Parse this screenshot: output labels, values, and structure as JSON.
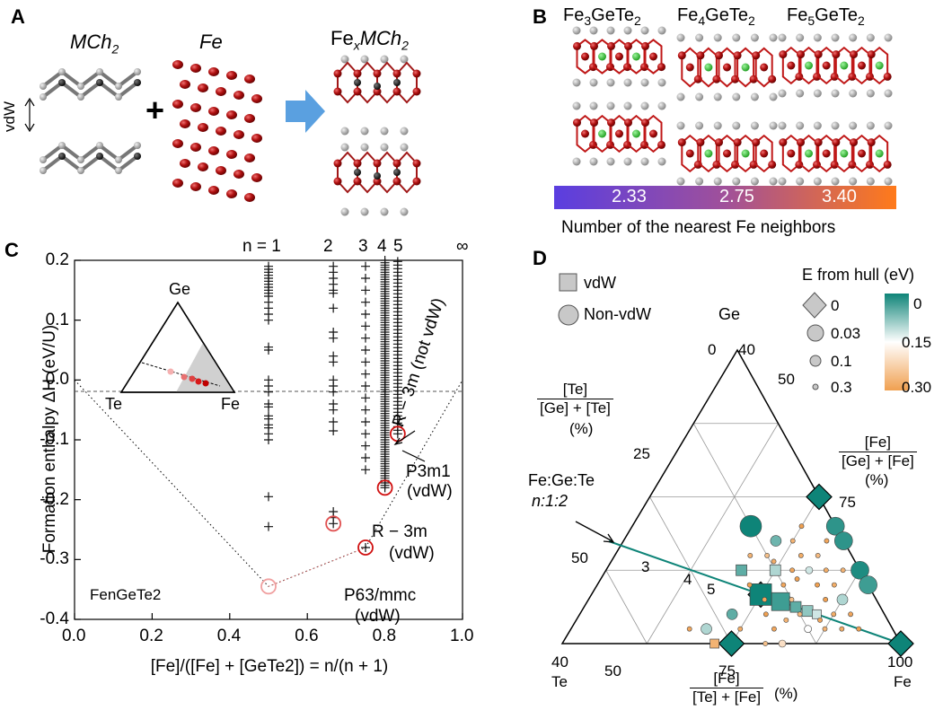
{
  "panel_a": {
    "label": "A",
    "mch2": "MCh",
    "mch2_sub": "2",
    "fe": "Fe",
    "product_fe": "Fe",
    "product_x": "x",
    "product_mch": "MCh",
    "product_sub": "2",
    "plus": "+",
    "vdw": "vdW"
  },
  "panel_b": {
    "label": "B",
    "structures": [
      {
        "main": "Fe",
        "sub1": "3",
        "mid": "GeTe",
        "sub2": "2"
      },
      {
        "main": "Fe",
        "sub1": "4",
        "mid": "GeTe",
        "sub2": "2"
      },
      {
        "main": "Fe",
        "sub1": "5",
        "mid": "GeTe",
        "sub2": "2"
      }
    ],
    "colorbar_ticks": [
      "2.33",
      "2.75",
      "3.40"
    ],
    "colorbar_label": "Number of the nearest Fe neighbors",
    "colorbar_colors": [
      "#5a3ee0",
      "#a0509a",
      "#ff7a1a"
    ]
  },
  "chart_data": [
    {
      "panel": "C",
      "type": "scatter",
      "xlabel": "[Fe]/([Fe] + [GeTe2]) = n/(n + 1)",
      "ylabel": "Formation enthalpy ΔH (eV/U)",
      "xlim": [
        0.0,
        1.0
      ],
      "ylim": [
        -0.4,
        0.2
      ],
      "x_ticks": [
        "0.0",
        "0.2",
        "0.4",
        "0.6",
        "0.8",
        "1.0"
      ],
      "y_ticks": [
        "0.2",
        "0.1",
        "0.0",
        "-0.1",
        "-0.2",
        "-0.3",
        "-0.4"
      ],
      "top_labels": [
        {
          "text": "n = 1",
          "x": 0.5
        },
        {
          "text": "2",
          "x": 0.667
        },
        {
          "text": "3",
          "x": 0.75
        },
        {
          "text": "4",
          "x": 0.8
        },
        {
          "text": "5",
          "x": 0.833
        },
        {
          "text": "∞",
          "x": 1.0
        }
      ],
      "convex_hull": [
        {
          "x": 0.0,
          "y": 0.0
        },
        {
          "x": 0.5,
          "y": -0.345
        },
        {
          "x": 0.75,
          "y": -0.28
        },
        {
          "x": 1.0,
          "y": 0.0
        }
      ],
      "hull_to_hull_points": [
        {
          "x": 0.5,
          "y": -0.345
        },
        {
          "x": 0.667,
          "y": -0.24
        },
        {
          "x": 0.75,
          "y": -0.28
        },
        {
          "x": 0.8,
          "y": -0.18
        },
        {
          "x": 0.833,
          "y": -0.09
        }
      ],
      "highlighted": [
        {
          "x": 0.5,
          "y": -0.345,
          "color": "#f0a0a0"
        },
        {
          "x": 0.667,
          "y": -0.24,
          "color": "#e05050"
        },
        {
          "x": 0.75,
          "y": -0.28,
          "color": "#d01010"
        },
        {
          "x": 0.8,
          "y": -0.18,
          "color": "#d01010"
        },
        {
          "x": 0.833,
          "y": -0.09,
          "color": "#d01010"
        }
      ],
      "columns": [
        {
          "x": 0.5,
          "y": [
            0.19,
            0.185,
            0.18,
            0.175,
            0.17,
            0.165,
            0.16,
            0.155,
            0.15,
            0.145,
            0.14,
            0.13,
            0.12,
            0.11,
            0.1,
            0.055,
            0.05,
            0.0,
            -0.01,
            -0.02,
            -0.04,
            -0.045,
            -0.06,
            -0.065,
            -0.075,
            -0.08,
            -0.09,
            -0.1,
            -0.195,
            -0.245
          ]
        },
        {
          "x": 0.667,
          "y": [
            0.19,
            0.18,
            0.17,
            0.16,
            0.15,
            0.145,
            0.12,
            0.08,
            0.07,
            0.04,
            0.03,
            0.0,
            -0.01,
            -0.02,
            -0.04,
            -0.05,
            -0.07,
            -0.085,
            -0.22,
            -0.23,
            -0.24
          ]
        },
        {
          "x": 0.75,
          "y": [
            0.19,
            0.17,
            0.15,
            0.13,
            0.11,
            0.09,
            0.07,
            0.05,
            0.03,
            0.01,
            -0.01,
            -0.03,
            -0.05,
            -0.07,
            -0.09,
            -0.11,
            -0.13,
            -0.15,
            -0.28
          ]
        },
        {
          "x": 0.8,
          "y_range": [
            -0.18,
            0.2
          ],
          "step": 0.004
        },
        {
          "x": 0.833,
          "y_range": [
            -0.09,
            0.2
          ],
          "step": 0.006
        }
      ],
      "annotations": [
        {
          "text": "R − 3m (not vdW)",
          "rotated": true
        },
        {
          "text": "P3m1",
          "sub": "(vdW)"
        },
        {
          "text": "R − 3m",
          "sub": "(vdW)"
        },
        {
          "text": "P63/mmc",
          "sub": "(vdW)"
        }
      ],
      "series_label": "FenGeTe2",
      "inset": {
        "top": "Ge",
        "left": "Te",
        "right": "Fe"
      }
    },
    {
      "panel": "D",
      "type": "scatter",
      "subtype": "ternary",
      "vertices": {
        "top": "Ge",
        "left": "Te",
        "right": "Fe"
      },
      "axis_ticks": {
        "te_ge_edge": [
          "0",
          "25",
          "50"
        ],
        "ge_fe_edge": [
          "40",
          "50",
          "75"
        ],
        "bottom": [
          "40",
          "50",
          "75",
          "100"
        ]
      },
      "legend_shapes": [
        "vdW",
        "Non-vdW"
      ],
      "legend_title": "E from hull (eV)",
      "legend_sizes": [
        "0",
        "0.03",
        "0.1",
        "0.3"
      ],
      "colorbar_ticks": [
        "0",
        "0.15",
        "0.30"
      ],
      "colorbar_colors": [
        "#0e8478",
        "#ffffff",
        "#f0a050"
      ],
      "line_label": "Fe:Ge:Te",
      "line_label2": "n:1:2",
      "n_labels": [
        "3",
        "4",
        "5"
      ],
      "left_axis": {
        "num": "[Te]",
        "den": "[Ge] + [Te]",
        "unit": "(%)"
      },
      "right_axis": {
        "num": "[Fe]",
        "den": "[Ge] + [Fe]",
        "unit": "(%)"
      },
      "bottom_axis": {
        "num": "[Fe]",
        "den": "[Te] + [Fe]",
        "unit": "(%)"
      },
      "points": [
        {
          "fe": 0.5,
          "ge": 0.0,
          "te": 0.5,
          "shape": "diamond",
          "e": 0.0
        },
        {
          "fe": 1.0,
          "ge": 0.0,
          "te": 0.0,
          "shape": "diamond",
          "e": 0.0
        },
        {
          "fe": 0.5,
          "ge": 0.5,
          "te": 0.0,
          "shape": "diamond",
          "e": 0.0
        },
        {
          "fe": 0.5,
          "ge": 0.167,
          "te": 0.333,
          "shape": "diamond",
          "e": 0.0
        },
        {
          "fe": 0.5,
          "ge": 0.167,
          "te": 0.333,
          "shape": "square",
          "e": 0.0
        },
        {
          "fe": 0.6,
          "ge": 0.4,
          "te": 0.0,
          "shape": "circle",
          "e": 0.02
        },
        {
          "fe": 0.65,
          "ge": 0.35,
          "te": 0.0,
          "shape": "circle",
          "e": 0.02
        },
        {
          "fe": 0.75,
          "ge": 0.25,
          "te": 0.0,
          "shape": "circle",
          "e": 0.01
        },
        {
          "fe": 0.8,
          "ge": 0.2,
          "te": 0.0,
          "shape": "circle",
          "e": 0.03
        },
        {
          "fe": 0.35,
          "ge": 0.4,
          "te": 0.25,
          "shape": "circle",
          "e": 0.0
        },
        {
          "fe": 0.45,
          "ge": 0.35,
          "te": 0.2,
          "shape": "circle",
          "e": 0.06
        },
        {
          "fe": 0.6,
          "ge": 0.25,
          "te": 0.15,
          "shape": "circle",
          "e": 0.12
        },
        {
          "fe": 0.4,
          "ge": 0.25,
          "te": 0.35,
          "shape": "square",
          "e": 0.05
        },
        {
          "fe": 0.571,
          "ge": 0.143,
          "te": 0.286,
          "shape": "square",
          "e": 0.03
        },
        {
          "fe": 0.625,
          "ge": 0.125,
          "te": 0.25,
          "shape": "square",
          "e": 0.05
        },
        {
          "fe": 0.667,
          "ge": 0.111,
          "te": 0.222,
          "shape": "square",
          "e": 0.08
        },
        {
          "fe": 0.7,
          "ge": 0.1,
          "te": 0.2,
          "shape": "square",
          "e": 0.12
        },
        {
          "fe": 0.5,
          "ge": 0.25,
          "te": 0.25,
          "shape": "square",
          "e": 0.1
        },
        {
          "fe": 0.45,
          "ge": 0.1,
          "te": 0.45,
          "shape": "circle",
          "e": 0.05
        },
        {
          "fe": 0.4,
          "ge": 0.05,
          "te": 0.55,
          "shape": "circle",
          "e": 0.1
        },
        {
          "fe": 0.7,
          "ge": 0.05,
          "te": 0.25,
          "shape": "circle",
          "e": 0.15
        },
        {
          "fe": 0.75,
          "ge": 0.15,
          "te": 0.1,
          "shape": "circle",
          "e": 0.1
        },
        {
          "fe": 0.65,
          "ge": 0.0,
          "te": 0.35,
          "shape": "circle",
          "e": 0.2
        },
        {
          "fe": 0.45,
          "ge": 0.3,
          "te": 0.25,
          "shape": "circle",
          "e": 0.25
        },
        {
          "fe": 0.55,
          "ge": 0.3,
          "te": 0.15,
          "shape": "circle",
          "e": 0.28
        },
        {
          "fe": 0.5,
          "ge": 0.35,
          "te": 0.15,
          "shape": "circle",
          "e": 0.27
        },
        {
          "fe": 0.6,
          "ge": 0.3,
          "te": 0.1,
          "shape": "circle",
          "e": 0.26
        },
        {
          "fe": 0.55,
          "ge": 0.2,
          "te": 0.25,
          "shape": "circle",
          "e": 0.29
        },
        {
          "fe": 0.65,
          "ge": 0.2,
          "te": 0.15,
          "shape": "circle",
          "e": 0.3
        },
        {
          "fe": 0.7,
          "ge": 0.2,
          "te": 0.1,
          "shape": "circle",
          "e": 0.28
        },
        {
          "fe": 0.6,
          "ge": 0.15,
          "te": 0.25,
          "shape": "circle",
          "e": 0.25
        },
        {
          "fe": 0.75,
          "ge": 0.05,
          "te": 0.2,
          "shape": "circle",
          "e": 0.27
        },
        {
          "fe": 0.8,
          "ge": 0.1,
          "te": 0.1,
          "shape": "circle",
          "e": 0.29
        },
        {
          "fe": 0.55,
          "ge": 0.1,
          "te": 0.35,
          "shape": "circle",
          "e": 0.3
        },
        {
          "fe": 0.5,
          "ge": 0.05,
          "te": 0.45,
          "shape": "circle",
          "e": 0.28
        },
        {
          "fe": 0.6,
          "ge": 0.05,
          "te": 0.35,
          "shape": "circle",
          "e": 0.29
        },
        {
          "fe": 0.45,
          "ge": 0.2,
          "te": 0.35,
          "shape": "circle",
          "e": 0.3
        },
        {
          "fe": 0.4,
          "ge": 0.3,
          "te": 0.3,
          "shape": "circle",
          "e": 0.27
        },
        {
          "fe": 0.65,
          "ge": 0.1,
          "te": 0.25,
          "shape": "circle",
          "e": 0.26
        },
        {
          "fe": 0.55,
          "ge": 0.25,
          "te": 0.2,
          "shape": "circle",
          "e": 0.29
        },
        {
          "fe": 0.7,
          "ge": 0.15,
          "te": 0.15,
          "shape": "circle",
          "e": 0.3
        },
        {
          "fe": 0.75,
          "ge": 0.1,
          "te": 0.15,
          "shape": "circle",
          "e": 0.28
        },
        {
          "fe": 0.5,
          "ge": 0.4,
          "te": 0.1,
          "shape": "circle",
          "e": 0.3
        },
        {
          "fe": 0.6,
          "ge": 0.35,
          "te": 0.05,
          "shape": "circle",
          "e": 0.29
        },
        {
          "fe": 0.7,
          "ge": 0.25,
          "te": 0.05,
          "shape": "circle",
          "e": 0.27
        },
        {
          "fe": 0.35,
          "ge": 0.05,
          "te": 0.6,
          "shape": "circle",
          "e": 0.29
        },
        {
          "fe": 0.45,
          "ge": 0.0,
          "te": 0.55,
          "shape": "square",
          "e": 0.27
        },
        {
          "fe": 0.6,
          "ge": 0.0,
          "te": 0.4,
          "shape": "circle",
          "e": 0.25
        },
        {
          "fe": 0.8,
          "ge": 0.05,
          "te": 0.15,
          "shape": "circle",
          "e": 0.28
        },
        {
          "fe": 0.85,
          "ge": 0.05,
          "te": 0.1,
          "shape": "circle",
          "e": 0.3
        },
        {
          "fe": 0.65,
          "ge": 0.25,
          "te": 0.1,
          "shape": "circle",
          "e": 0.28
        },
        {
          "fe": 0.58,
          "ge": 0.22,
          "te": 0.2,
          "shape": "circle",
          "e": 0.3
        },
        {
          "fe": 0.52,
          "ge": 0.15,
          "te": 0.33,
          "shape": "circle",
          "e": 0.29
        },
        {
          "fe": 0.48,
          "ge": 0.28,
          "te": 0.24,
          "shape": "circle",
          "e": 0.28
        },
        {
          "fe": 0.62,
          "ge": 0.08,
          "te": 0.3,
          "shape": "circle",
          "e": 0.27
        },
        {
          "fe": 0.72,
          "ge": 0.08,
          "te": 0.2,
          "shape": "circle",
          "e": 0.29
        }
      ]
    }
  ]
}
